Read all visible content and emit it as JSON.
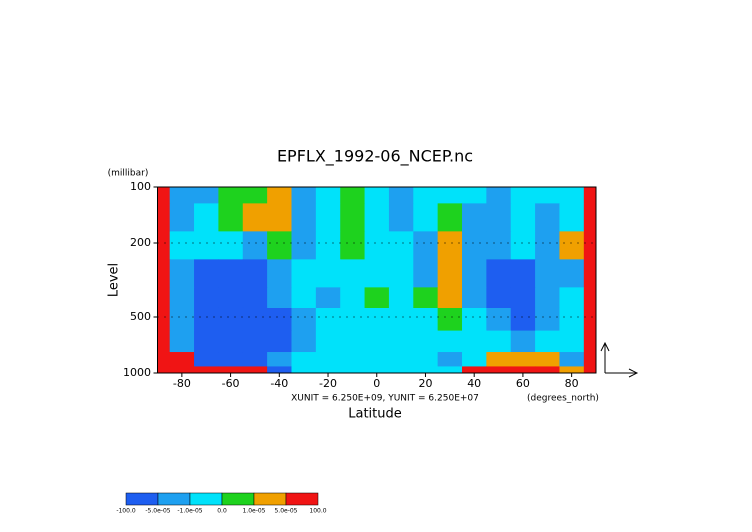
{
  "chart_data": {
    "type": "contour",
    "title": "EPFLX_1992-06_NCEP.nc",
    "x_label": "Latitude",
    "y_label": "Level",
    "y_unit": "(millibar)",
    "x_unit": "(degrees_north)",
    "annotation": "XUNIT = 6.250E+09, YUNIT = 6.250E+07",
    "xlim": [
      -90,
      90
    ],
    "xticks": [
      -80,
      -60,
      -40,
      -20,
      0,
      20,
      40,
      60,
      80
    ],
    "ylim": [
      1000,
      100
    ],
    "yticks": [
      100,
      200,
      500,
      1000
    ],
    "log_y": true,
    "field": {
      "x": [
        -90,
        -80,
        -70,
        -60,
        -50,
        -40,
        -30,
        -20,
        -10,
        0,
        10,
        20,
        30,
        40,
        50,
        60,
        70,
        80,
        90
      ],
      "y": [
        100,
        150,
        200,
        300,
        400,
        500,
        700,
        850,
        1000
      ],
      "values": [
        [
          0.0001,
          -3e-05,
          -3e-05,
          5e-06,
          5e-06,
          3e-05,
          -3e-05,
          -5e-06,
          5e-06,
          -5e-06,
          -3e-05,
          -5e-06,
          -5e-06,
          -5e-06,
          -3e-05,
          -5e-06,
          -5e-06,
          -5e-06,
          0.0001
        ],
        [
          0.0001,
          -3e-05,
          -5e-06,
          5e-06,
          3e-05,
          3e-05,
          -3e-05,
          -5e-06,
          5e-06,
          -5e-06,
          -3e-05,
          -5e-06,
          5e-06,
          -3e-05,
          -3e-05,
          -5e-06,
          -3e-05,
          -5e-06,
          0.0001
        ],
        [
          0.0001,
          -5e-06,
          -5e-06,
          -5e-06,
          -3e-05,
          5e-06,
          -3e-05,
          -5e-06,
          5e-06,
          -5e-06,
          -5e-06,
          -3e-05,
          3e-05,
          -3e-05,
          -3e-05,
          -5e-06,
          -3e-05,
          3e-05,
          0.0001
        ],
        [
          0.0001,
          -3e-05,
          -0.0001,
          -0.0001,
          -0.0001,
          -3e-05,
          -5e-06,
          -5e-06,
          -5e-06,
          -5e-06,
          -5e-06,
          -3e-05,
          3e-05,
          -3e-05,
          -0.0001,
          -0.0001,
          -3e-05,
          -3e-05,
          0.0001
        ],
        [
          0.0001,
          -3e-05,
          -0.0001,
          -0.0001,
          -0.0001,
          -3e-05,
          -5e-06,
          -3e-05,
          -5e-06,
          5e-06,
          -5e-06,
          5e-06,
          3e-05,
          -3e-05,
          -0.0001,
          -0.0001,
          -3e-05,
          -5e-06,
          0.0001
        ],
        [
          0.0001,
          -3e-05,
          -0.0001,
          -0.0001,
          -0.0001,
          -0.0001,
          -3e-05,
          -5e-06,
          -5e-06,
          -5e-06,
          -5e-06,
          -5e-06,
          5e-06,
          -5e-06,
          -3e-05,
          -0.0001,
          -3e-05,
          -5e-06,
          0.0001
        ],
        [
          0.0001,
          -3e-05,
          -0.0001,
          -0.0001,
          -0.0001,
          -0.0001,
          -3e-05,
          -5e-06,
          -5e-06,
          -5e-06,
          -5e-06,
          -5e-06,
          -5e-06,
          -5e-06,
          -5e-06,
          -3e-05,
          -5e-06,
          -5e-06,
          0.0001
        ],
        [
          0.0001,
          0.0001,
          -0.0001,
          -0.0001,
          -0.0001,
          -3e-05,
          -5e-06,
          -5e-06,
          -5e-06,
          -5e-06,
          -5e-06,
          -5e-06,
          -3e-05,
          -5e-06,
          3e-05,
          3e-05,
          3e-05,
          -3e-05,
          0.0001
        ],
        [
          0.0001,
          0.0001,
          0.0001,
          0.0001,
          0.0001,
          -0.0001,
          -5e-06,
          -5e-06,
          -5e-06,
          -5e-06,
          -5e-06,
          -5e-06,
          -5e-06,
          0.0001,
          0.0001,
          0.0001,
          0.0001,
          3e-05,
          0.0001
        ]
      ]
    },
    "colorbar": {
      "levels": [
        {
          "value": -100,
          "label": "-100.0"
        },
        {
          "value": -5e-05,
          "label": "-5.0e-05"
        },
        {
          "value": -1e-05,
          "label": "-1.0e-05"
        },
        {
          "value": 0,
          "label": "0.0"
        },
        {
          "value": 1e-05,
          "label": "1.0e-05"
        },
        {
          "value": 5e-05,
          "label": "5.0e-05"
        },
        {
          "value": 100,
          "label": "100.0"
        }
      ],
      "colors": [
        "#1e5ef0",
        "#1ea0f0",
        "#00e2fa",
        "#1ed21e",
        "#f0a000",
        "#f01414"
      ]
    }
  }
}
